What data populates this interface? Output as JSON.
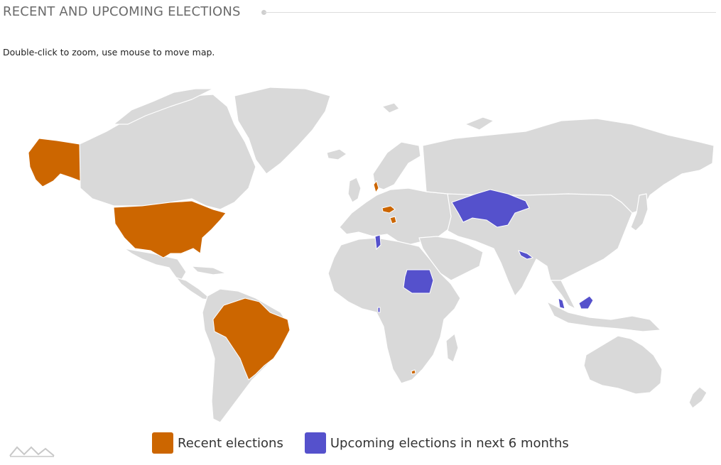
{
  "header": {
    "title": "RECENT AND UPCOMING ELECTIONS"
  },
  "hint": "Double-click to zoom, use mouse to move map.",
  "legend": {
    "items": [
      {
        "label": "Recent elections",
        "color": "#cc6600"
      },
      {
        "label": "Upcoming elections in next 6 months",
        "color": "#5551cc"
      }
    ]
  },
  "map": {
    "land_color": "#d9d9d9",
    "recent_elections": [
      "Alaska (United States)",
      "United States",
      "Brazil",
      "Sweden",
      "Czech Republic",
      "Bosnia and Herzegovina",
      "Lesotho"
    ],
    "upcoming_elections": [
      "Kazakhstan",
      "Tunisia",
      "Sudan",
      "Bangladesh",
      "Malaysia",
      "Togo"
    ]
  },
  "branding": {
    "logo_icon": "amcharts-logo-icon"
  }
}
